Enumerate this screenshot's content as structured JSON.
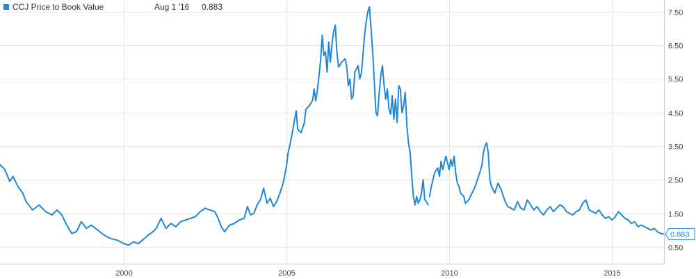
{
  "legend": {
    "series_label": "CCJ Price to Book Value",
    "date_label": "Aug 1 '16",
    "value_label": "0.883"
  },
  "last_value_badge": "0.883",
  "colors": {
    "series": "#1f86d8",
    "grid": "#e6e6e6",
    "axis": "#c8c8c8"
  },
  "chart_data": {
    "type": "line",
    "title": "",
    "xlabel": "",
    "ylabel": "",
    "xlim": [
      1996.2,
      2016.6
    ],
    "ylim": [
      0.0,
      7.85
    ],
    "x_ticks": [
      {
        "value": 2000,
        "label": "2000"
      },
      {
        "value": 2005,
        "label": "2005"
      },
      {
        "value": 2010,
        "label": "2010"
      },
      {
        "value": 2015,
        "label": "2015"
      }
    ],
    "y_ticks": [
      {
        "value": 0.5,
        "label": "0.50"
      },
      {
        "value": 1.5,
        "label": "1.50"
      },
      {
        "value": 2.5,
        "label": "2.50"
      },
      {
        "value": 3.5,
        "label": "3.50"
      },
      {
        "value": 4.5,
        "label": "4.50"
      },
      {
        "value": 5.5,
        "label": "5.50"
      },
      {
        "value": 6.5,
        "label": "6.50"
      },
      {
        "value": 7.5,
        "label": "7.50"
      }
    ],
    "grid": true,
    "legend_position": "top-left",
    "series": [
      {
        "name": "CCJ Price to Book Value",
        "color": "#1f86d8",
        "segments": [
          [
            [
              1996.2,
              2.95
            ],
            [
              1996.35,
              2.8
            ],
            [
              1996.5,
              2.45
            ],
            [
              1996.6,
              2.6
            ],
            [
              1996.75,
              2.3
            ],
            [
              1996.9,
              2.1
            ],
            [
              1997.0,
              1.85
            ],
            [
              1997.2,
              1.6
            ],
            [
              1997.4,
              1.75
            ],
            [
              1997.6,
              1.55
            ],
            [
              1997.8,
              1.45
            ],
            [
              1997.95,
              1.6
            ],
            [
              1998.1,
              1.45
            ],
            [
              1998.25,
              1.15
            ],
            [
              1998.4,
              0.9
            ],
            [
              1998.55,
              0.95
            ],
            [
              1998.7,
              1.25
            ],
            [
              1998.85,
              1.05
            ],
            [
              1999.0,
              1.15
            ],
            [
              1999.2,
              1.0
            ],
            [
              1999.4,
              0.85
            ],
            [
              1999.6,
              0.75
            ],
            [
              1999.8,
              0.7
            ],
            [
              2000.0,
              0.6
            ],
            [
              2000.15,
              0.55
            ],
            [
              2000.3,
              0.65
            ],
            [
              2000.45,
              0.6
            ],
            [
              2000.6,
              0.72
            ],
            [
              2000.75,
              0.85
            ],
            [
              2000.9,
              0.95
            ],
            [
              2001.0,
              1.05
            ],
            [
              2001.15,
              1.35
            ],
            [
              2001.3,
              1.05
            ],
            [
              2001.45,
              1.2
            ],
            [
              2001.6,
              1.1
            ],
            [
              2001.75,
              1.25
            ],
            [
              2001.9,
              1.3
            ],
            [
              2002.05,
              1.35
            ],
            [
              2002.2,
              1.4
            ],
            [
              2002.35,
              1.55
            ],
            [
              2002.5,
              1.65
            ],
            [
              2002.65,
              1.6
            ],
            [
              2002.8,
              1.55
            ],
            [
              2002.9,
              1.35
            ],
            [
              2003.0,
              1.1
            ],
            [
              2003.1,
              0.95
            ],
            [
              2003.25,
              1.15
            ],
            [
              2003.4,
              1.2
            ],
            [
              2003.55,
              1.3
            ],
            [
              2003.7,
              1.35
            ],
            [
              2003.8,
              1.7
            ],
            [
              2003.9,
              1.45
            ],
            [
              2004.0,
              1.5
            ],
            [
              2004.1,
              1.75
            ],
            [
              2004.2,
              1.9
            ],
            [
              2004.3,
              2.25
            ],
            [
              2004.4,
              1.8
            ],
            [
              2004.5,
              1.95
            ],
            [
              2004.6,
              1.7
            ],
            [
              2004.7,
              1.85
            ],
            [
              2004.8,
              2.1
            ],
            [
              2004.9,
              2.4
            ],
            [
              2005.0,
              2.9
            ],
            [
              2005.05,
              3.3
            ],
            [
              2005.1,
              3.5
            ],
            [
              2005.2,
              4.0
            ],
            [
              2005.25,
              4.3
            ],
            [
              2005.3,
              4.55
            ],
            [
              2005.35,
              4.0
            ],
            [
              2005.45,
              3.9
            ],
            [
              2005.55,
              4.2
            ],
            [
              2005.6,
              4.6
            ],
            [
              2005.7,
              4.7
            ],
            [
              2005.8,
              4.85
            ],
            [
              2005.85,
              5.2
            ],
            [
              2005.9,
              4.85
            ],
            [
              2005.95,
              5.15
            ],
            [
              2006.0,
              5.6
            ],
            [
              2006.05,
              6.05
            ],
            [
              2006.1,
              6.8
            ],
            [
              2006.15,
              6.2
            ],
            [
              2006.2,
              6.3
            ],
            [
              2006.25,
              5.7
            ],
            [
              2006.3,
              6.6
            ],
            [
              2006.35,
              6.0
            ],
            [
              2006.4,
              6.55
            ],
            [
              2006.45,
              6.9
            ],
            [
              2006.5,
              7.1
            ],
            [
              2006.55,
              6.3
            ],
            [
              2006.6,
              5.85
            ],
            [
              2006.7,
              6.0
            ],
            [
              2006.8,
              6.1
            ],
            [
              2006.85,
              5.9
            ],
            [
              2006.9,
              5.3
            ],
            [
              2006.95,
              5.5
            ],
            [
              2007.0,
              4.9
            ],
            [
              2007.05,
              5.0
            ],
            [
              2007.1,
              5.7
            ],
            [
              2007.2,
              5.9
            ],
            [
              2007.25,
              5.5
            ],
            [
              2007.3,
              5.65
            ],
            [
              2007.35,
              6.2
            ],
            [
              2007.4,
              6.8
            ],
            [
              2007.45,
              7.2
            ],
            [
              2007.5,
              7.5
            ],
            [
              2007.55,
              7.65
            ],
            [
              2007.6,
              7.0
            ],
            [
              2007.65,
              6.3
            ],
            [
              2007.7,
              5.4
            ],
            [
              2007.75,
              4.5
            ],
            [
              2007.8,
              4.4
            ],
            [
              2007.85,
              5.1
            ],
            [
              2007.9,
              5.6
            ],
            [
              2007.95,
              5.9
            ],
            [
              2008.0,
              5.3
            ],
            [
              2008.05,
              4.9
            ],
            [
              2008.1,
              5.2
            ],
            [
              2008.15,
              4.6
            ],
            [
              2008.2,
              4.45
            ],
            [
              2008.25,
              5.0
            ],
            [
              2008.3,
              4.3
            ],
            [
              2008.35,
              4.9
            ],
            [
              2008.4,
              4.2
            ],
            [
              2008.45,
              5.3
            ],
            [
              2008.5,
              5.2
            ],
            [
              2008.55,
              4.5
            ],
            [
              2008.6,
              4.7
            ],
            [
              2008.65,
              5.1
            ],
            [
              2008.7,
              4.1
            ],
            [
              2008.75,
              3.6
            ],
            [
              2008.8,
              3.3
            ],
            [
              2008.85,
              2.6
            ],
            [
              2008.9,
              2.0
            ],
            [
              2008.95,
              1.75
            ],
            [
              2009.0,
              2.0
            ],
            [
              2009.05,
              1.8
            ],
            [
              2009.1,
              1.9
            ],
            [
              2009.15,
              2.1
            ],
            [
              2009.2,
              2.5
            ],
            [
              2009.25,
              1.9
            ],
            [
              2009.3,
              1.85
            ],
            [
              2009.35,
              1.75
            ]
          ],
          [
            [
              2009.4,
              2.0
            ],
            [
              2009.45,
              2.3
            ],
            [
              2009.55,
              2.7
            ],
            [
              2009.65,
              2.85
            ],
            [
              2009.7,
              2.6
            ],
            [
              2009.75,
              3.05
            ],
            [
              2009.8,
              2.8
            ],
            [
              2009.9,
              3.2
            ],
            [
              2010.0,
              2.8
            ],
            [
              2010.05,
              3.1
            ],
            [
              2010.1,
              2.9
            ],
            [
              2010.15,
              3.2
            ],
            [
              2010.2,
              2.7
            ],
            [
              2010.25,
              2.4
            ],
            [
              2010.3,
              2.3
            ],
            [
              2010.35,
              2.1
            ],
            [
              2010.45,
              2.0
            ],
            [
              2010.5,
              1.8
            ],
            [
              2010.6,
              1.9
            ],
            [
              2010.7,
              2.1
            ],
            [
              2010.8,
              2.3
            ],
            [
              2010.9,
              2.6
            ],
            [
              2011.0,
              2.9
            ],
            [
              2011.05,
              3.3
            ],
            [
              2011.1,
              3.5
            ],
            [
              2011.15,
              3.6
            ],
            [
              2011.2,
              3.3
            ],
            [
              2011.25,
              2.5
            ],
            [
              2011.3,
              2.3
            ],
            [
              2011.4,
              2.1
            ],
            [
              2011.5,
              2.4
            ],
            [
              2011.6,
              2.2
            ],
            [
              2011.7,
              1.9
            ],
            [
              2011.8,
              1.7
            ],
            [
              2011.9,
              1.65
            ],
            [
              2012.0,
              1.6
            ],
            [
              2012.1,
              1.85
            ],
            [
              2012.2,
              1.65
            ],
            [
              2012.3,
              1.6
            ],
            [
              2012.4,
              1.9
            ],
            [
              2012.5,
              1.75
            ],
            [
              2012.6,
              1.6
            ],
            [
              2012.7,
              1.7
            ],
            [
              2012.8,
              1.55
            ],
            [
              2012.9,
              1.45
            ],
            [
              2013.0,
              1.6
            ],
            [
              2013.1,
              1.7
            ],
            [
              2013.2,
              1.55
            ],
            [
              2013.3,
              1.65
            ],
            [
              2013.4,
              1.75
            ],
            [
              2013.5,
              1.7
            ],
            [
              2013.6,
              1.55
            ],
            [
              2013.7,
              1.5
            ],
            [
              2013.8,
              1.45
            ],
            [
              2013.9,
              1.55
            ],
            [
              2014.0,
              1.6
            ],
            [
              2014.1,
              1.8
            ],
            [
              2014.2,
              1.9
            ],
            [
              2014.25,
              1.75
            ],
            [
              2014.3,
              1.6
            ],
            [
              2014.4,
              1.55
            ],
            [
              2014.5,
              1.5
            ],
            [
              2014.6,
              1.6
            ],
            [
              2014.7,
              1.45
            ],
            [
              2014.8,
              1.35
            ],
            [
              2014.9,
              1.4
            ],
            [
              2015.0,
              1.3
            ],
            [
              2015.1,
              1.4
            ],
            [
              2015.2,
              1.55
            ],
            [
              2015.3,
              1.45
            ],
            [
              2015.4,
              1.35
            ],
            [
              2015.5,
              1.3
            ],
            [
              2015.6,
              1.2
            ],
            [
              2015.7,
              1.25
            ],
            [
              2015.8,
              1.1
            ],
            [
              2015.9,
              1.15
            ],
            [
              2016.0,
              1.1
            ],
            [
              2016.1,
              1.05
            ],
            [
              2016.2,
              1.0
            ],
            [
              2016.3,
              1.05
            ],
            [
              2016.4,
              0.95
            ],
            [
              2016.5,
              0.9
            ],
            [
              2016.58,
              0.883
            ]
          ]
        ]
      }
    ]
  }
}
